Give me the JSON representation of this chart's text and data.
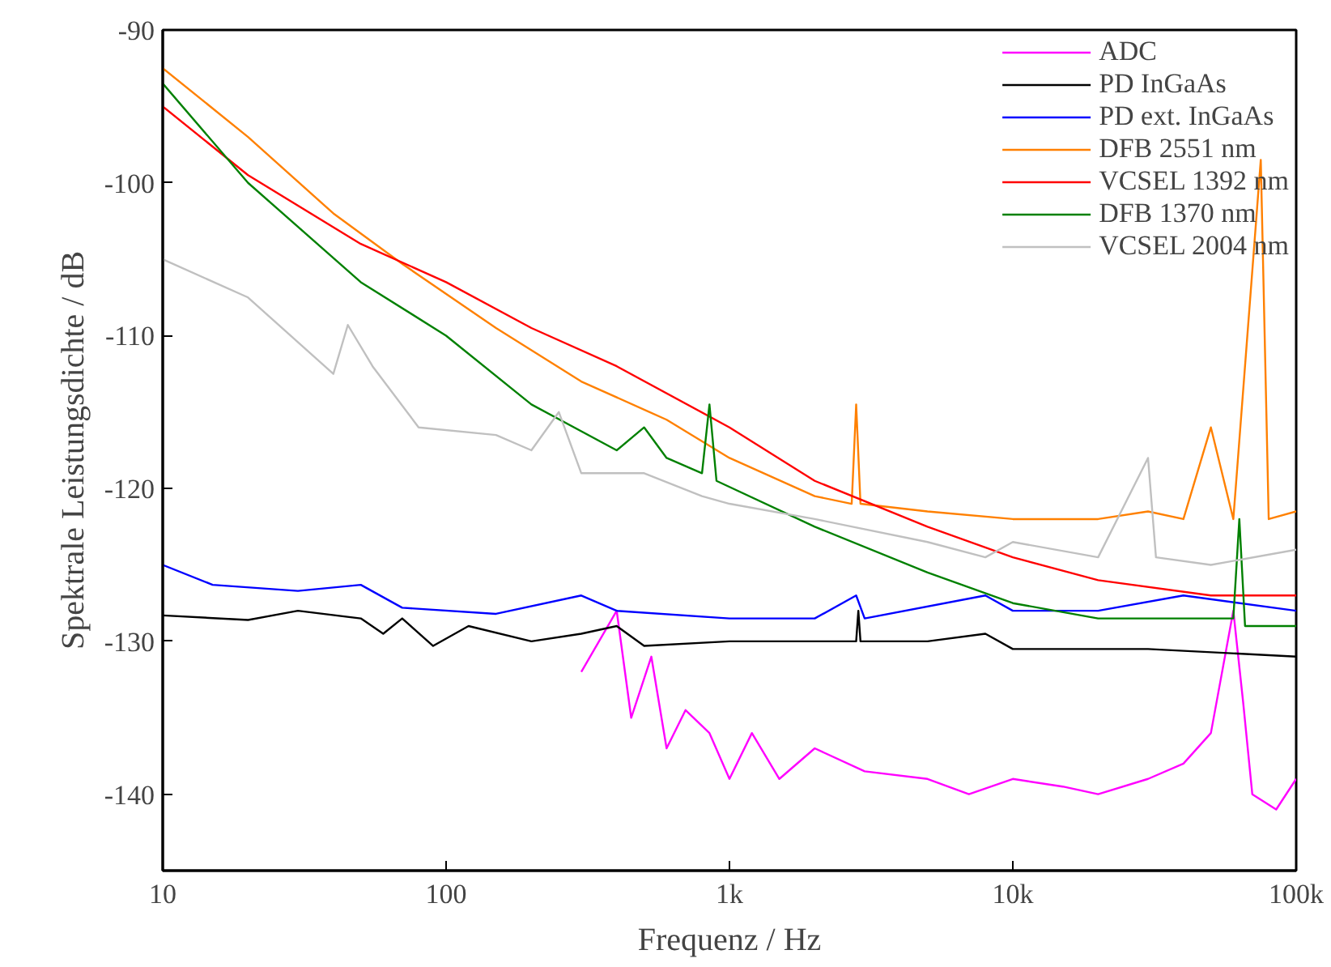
{
  "chart_data": {
    "type": "line",
    "xlabel": "Frequenz / Hz",
    "ylabel": "Spektrale Leistungsdichte / dB",
    "log": "x",
    "grid": false,
    "legend": "top right",
    "marker": "none",
    "line_style": "solid",
    "xlim": [
      10,
      100000
    ],
    "xticks": [
      10,
      100,
      {
        "value": 1000,
        "label": "1k"
      },
      {
        "value": 10000,
        "label": "10k"
      },
      {
        "value": 100000,
        "label": "100k"
      }
    ],
    "ylim": [
      -145,
      -90
    ],
    "yticks": [
      -140,
      -130,
      -120,
      -110,
      -100,
      -90
    ],
    "series": [
      {
        "name": "ADC",
        "color": "#ff00ff",
        "x": [
          300,
          400,
          450,
          530,
          600,
          700,
          850,
          1000,
          1200,
          1500,
          2000,
          3000,
          5000,
          7000,
          10000,
          15000,
          20000,
          30000,
          40000,
          50000,
          60000,
          65000,
          70000,
          85000,
          100000
        ],
        "values": [
          -132,
          -128,
          -135,
          -131,
          -137,
          -134.5,
          -136,
          -139,
          -136,
          -139,
          -137,
          -138.5,
          -139,
          -140,
          -139,
          -139.5,
          -140,
          -139,
          -138,
          -136,
          -128,
          -134,
          -140,
          -141,
          -139
        ]
      },
      {
        "name": "PD InGaAs",
        "color": "#000000",
        "x": [
          10,
          20,
          30,
          50,
          60,
          70,
          90,
          120,
          200,
          300,
          400,
          500,
          1000,
          2800,
          2850,
          2900,
          5000,
          8000,
          10000,
          15000,
          30000,
          100000
        ],
        "values": [
          -128.3,
          -128.6,
          -128,
          -128.5,
          -129.5,
          -128.5,
          -130.3,
          -129,
          -130,
          -129.5,
          -129,
          -130.3,
          -130,
          -130,
          -128,
          -130,
          -130,
          -129.5,
          -130.5,
          -130.5,
          -130.5,
          -131
        ]
      },
      {
        "name": "PD ext. InGaAs",
        "color": "#0000ff",
        "x": [
          10,
          15,
          30,
          50,
          70,
          150,
          300,
          400,
          1000,
          2000,
          2800,
          3000,
          8000,
          10000,
          20000,
          40000,
          100000
        ],
        "values": [
          -125,
          -126.3,
          -126.7,
          -126.3,
          -127.8,
          -128.2,
          -127,
          -128,
          -128.5,
          -128.5,
          -127,
          -128.5,
          -127,
          -128,
          -128,
          -127,
          -128
        ]
      },
      {
        "name": "DFB 2551 nm",
        "color": "#ff8000",
        "x": [
          10,
          20,
          40,
          70,
          150,
          300,
          600,
          1000,
          2000,
          2700,
          2800,
          2900,
          5000,
          10000,
          20000,
          30000,
          40000,
          50000,
          60000,
          75000,
          80000,
          100000
        ],
        "values": [
          -92.5,
          -97,
          -102,
          -105.3,
          -109.5,
          -113,
          -115.5,
          -118,
          -120.5,
          -121,
          -114.5,
          -121,
          -121.5,
          -122,
          -122,
          -121.5,
          -122,
          -116,
          -122,
          -98.5,
          -122,
          -121.5
        ]
      },
      {
        "name": "VCSEL 1392 nm",
        "color": "#ff0000",
        "x": [
          10,
          20,
          50,
          100,
          200,
          400,
          1000,
          2000,
          5000,
          10000,
          20000,
          50000,
          100000
        ],
        "values": [
          -95,
          -99.5,
          -104,
          -106.5,
          -109.5,
          -112,
          -116,
          -119.5,
          -122.5,
          -124.5,
          -126,
          -127,
          -127
        ]
      },
      {
        "name": "DFB 1370 nm",
        "color": "#008000",
        "x": [
          10,
          20,
          50,
          100,
          200,
          400,
          500,
          600,
          800,
          850,
          900,
          2000,
          5000,
          10000,
          20000,
          60000,
          63000,
          66000,
          100000
        ],
        "values": [
          -93.5,
          -100,
          -106.5,
          -110,
          -114.5,
          -117.5,
          -116,
          -118,
          -119,
          -114.5,
          -119.5,
          -122.5,
          -125.5,
          -127.5,
          -128.5,
          -128.5,
          -122,
          -129,
          -129
        ]
      },
      {
        "name": "VCSEL 2004 nm",
        "color": "#c0c0c0",
        "x": [
          10,
          20,
          40,
          45,
          55,
          80,
          150,
          200,
          250,
          300,
          500,
          800,
          1000,
          2000,
          5000,
          8000,
          10000,
          20000,
          30000,
          32000,
          50000,
          100000
        ],
        "values": [
          -105,
          -107.5,
          -112.5,
          -109.3,
          -112,
          -116,
          -116.5,
          -117.5,
          -115,
          -119,
          -119,
          -120.5,
          -121,
          -122,
          -123.5,
          -124.5,
          -123.5,
          -124.5,
          -118,
          -124.5,
          -125,
          -124
        ]
      }
    ]
  }
}
